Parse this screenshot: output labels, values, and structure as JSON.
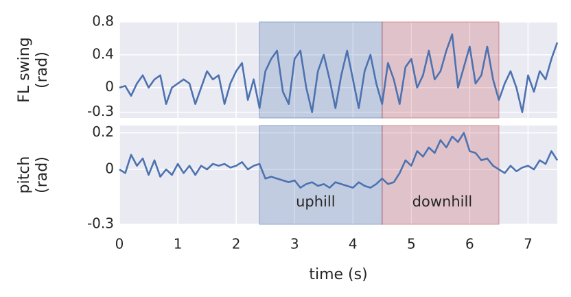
{
  "chart_data": [
    {
      "type": "line",
      "ylabel": [
        "FL swing",
        "(rad)"
      ],
      "x": [
        0,
        0.1,
        0.2,
        0.3,
        0.4,
        0.5,
        0.6,
        0.7,
        0.8,
        0.9,
        1.0,
        1.1,
        1.2,
        1.3,
        1.4,
        1.5,
        1.6,
        1.7,
        1.8,
        1.9,
        2.0,
        2.1,
        2.2,
        2.3,
        2.4,
        2.5,
        2.6,
        2.7,
        2.8,
        2.9,
        3.0,
        3.1,
        3.2,
        3.3,
        3.4,
        3.5,
        3.6,
        3.7,
        3.8,
        3.9,
        4.0,
        4.1,
        4.2,
        4.3,
        4.4,
        4.5,
        4.6,
        4.7,
        4.8,
        4.9,
        5.0,
        5.1,
        5.2,
        5.3,
        5.4,
        5.5,
        5.6,
        5.7,
        5.8,
        5.9,
        6.0,
        6.1,
        6.2,
        6.3,
        6.4,
        6.5,
        6.6,
        6.7,
        6.8,
        6.9,
        7.0,
        7.1,
        7.2,
        7.3,
        7.4,
        7.5
      ],
      "series": [
        {
          "color": "#4c72b0",
          "values": [
            0.0,
            0.02,
            -0.1,
            0.05,
            0.15,
            0.0,
            0.1,
            0.15,
            -0.2,
            0.0,
            0.05,
            0.1,
            0.05,
            -0.2,
            0.0,
            0.2,
            0.1,
            0.15,
            -0.2,
            0.05,
            0.2,
            0.3,
            -0.15,
            0.1,
            -0.25,
            0.2,
            0.35,
            0.45,
            -0.05,
            -0.2,
            0.35,
            0.45,
            0.0,
            -0.3,
            0.2,
            0.4,
            0.1,
            -0.25,
            0.15,
            0.45,
            0.1,
            -0.25,
            0.2,
            0.4,
            0.05,
            -0.2,
            0.3,
            0.1,
            -0.2,
            0.25,
            0.35,
            0.0,
            0.15,
            0.45,
            0.1,
            0.2,
            0.45,
            0.65,
            0.0,
            0.25,
            0.5,
            0.05,
            0.15,
            0.5,
            0.1,
            -0.15,
            0.05,
            0.2,
            0.0,
            -0.3,
            0.15,
            -0.05,
            0.2,
            0.1,
            0.35,
            0.55
          ]
        }
      ],
      "spans": [
        {
          "xlim": [
            2.4,
            4.5
          ],
          "color": "#4c72b0"
        },
        {
          "xlim": [
            4.5,
            6.5
          ],
          "color": "#c44e52"
        }
      ],
      "xlim": [
        0,
        7.5
      ],
      "xticks": [
        0,
        1,
        2,
        3,
        4,
        5,
        6,
        7
      ],
      "ylim": [
        -0.37,
        0.8
      ],
      "yticks": [
        -0.3,
        0.0,
        0.4,
        0.8
      ],
      "grid": true
    },
    {
      "type": "line",
      "ylabel": [
        "pitch",
        "(rad)"
      ],
      "xlabel": "time (s)",
      "x": [
        0,
        0.1,
        0.2,
        0.3,
        0.4,
        0.5,
        0.6,
        0.7,
        0.8,
        0.9,
        1.0,
        1.1,
        1.2,
        1.3,
        1.4,
        1.5,
        1.6,
        1.7,
        1.8,
        1.9,
        2.0,
        2.1,
        2.2,
        2.3,
        2.4,
        2.5,
        2.6,
        2.7,
        2.8,
        2.9,
        3.0,
        3.1,
        3.2,
        3.3,
        3.4,
        3.5,
        3.6,
        3.7,
        3.8,
        3.9,
        4.0,
        4.1,
        4.2,
        4.3,
        4.4,
        4.5,
        4.6,
        4.7,
        4.8,
        4.9,
        5.0,
        5.1,
        5.2,
        5.3,
        5.4,
        5.5,
        5.6,
        5.7,
        5.8,
        5.9,
        6.0,
        6.1,
        6.2,
        6.3,
        6.4,
        6.5,
        6.6,
        6.7,
        6.8,
        6.9,
        7.0,
        7.1,
        7.2,
        7.3,
        7.4,
        7.5
      ],
      "series": [
        {
          "color": "#4c72b0",
          "values": [
            0.0,
            -0.02,
            0.08,
            0.02,
            0.06,
            -0.03,
            0.05,
            -0.04,
            0.0,
            -0.03,
            0.03,
            -0.02,
            0.02,
            -0.03,
            0.02,
            0.0,
            0.03,
            0.02,
            0.03,
            0.01,
            0.02,
            0.04,
            0.0,
            0.02,
            0.03,
            -0.05,
            -0.04,
            -0.05,
            -0.06,
            -0.07,
            -0.06,
            -0.1,
            -0.08,
            -0.07,
            -0.09,
            -0.08,
            -0.1,
            -0.07,
            -0.08,
            -0.09,
            -0.1,
            -0.07,
            -0.09,
            -0.1,
            -0.08,
            -0.05,
            -0.08,
            -0.07,
            -0.02,
            0.05,
            0.02,
            0.1,
            0.07,
            0.12,
            0.09,
            0.16,
            0.12,
            0.18,
            0.15,
            0.2,
            0.1,
            0.09,
            0.05,
            0.06,
            0.02,
            0.0,
            -0.02,
            0.02,
            -0.01,
            0.01,
            0.02,
            0.0,
            0.05,
            0.03,
            0.1,
            0.05
          ]
        }
      ],
      "spans": [
        {
          "xlim": [
            2.4,
            4.5
          ],
          "color": "#4c72b0"
        },
        {
          "xlim": [
            4.5,
            6.5
          ],
          "color": "#c44e52"
        }
      ],
      "annotations": [
        {
          "text": "uphill",
          "x": 3.36,
          "y": -0.18
        },
        {
          "text": "downhill",
          "x": 5.53,
          "y": -0.18
        }
      ],
      "xlim": [
        0,
        7.5
      ],
      "xticks": [
        0,
        1,
        2,
        3,
        4,
        5,
        6,
        7
      ],
      "ylim": [
        -0.3,
        0.24
      ],
      "yticks": [
        -0.3,
        0.0,
        0.2
      ],
      "grid": true
    }
  ]
}
